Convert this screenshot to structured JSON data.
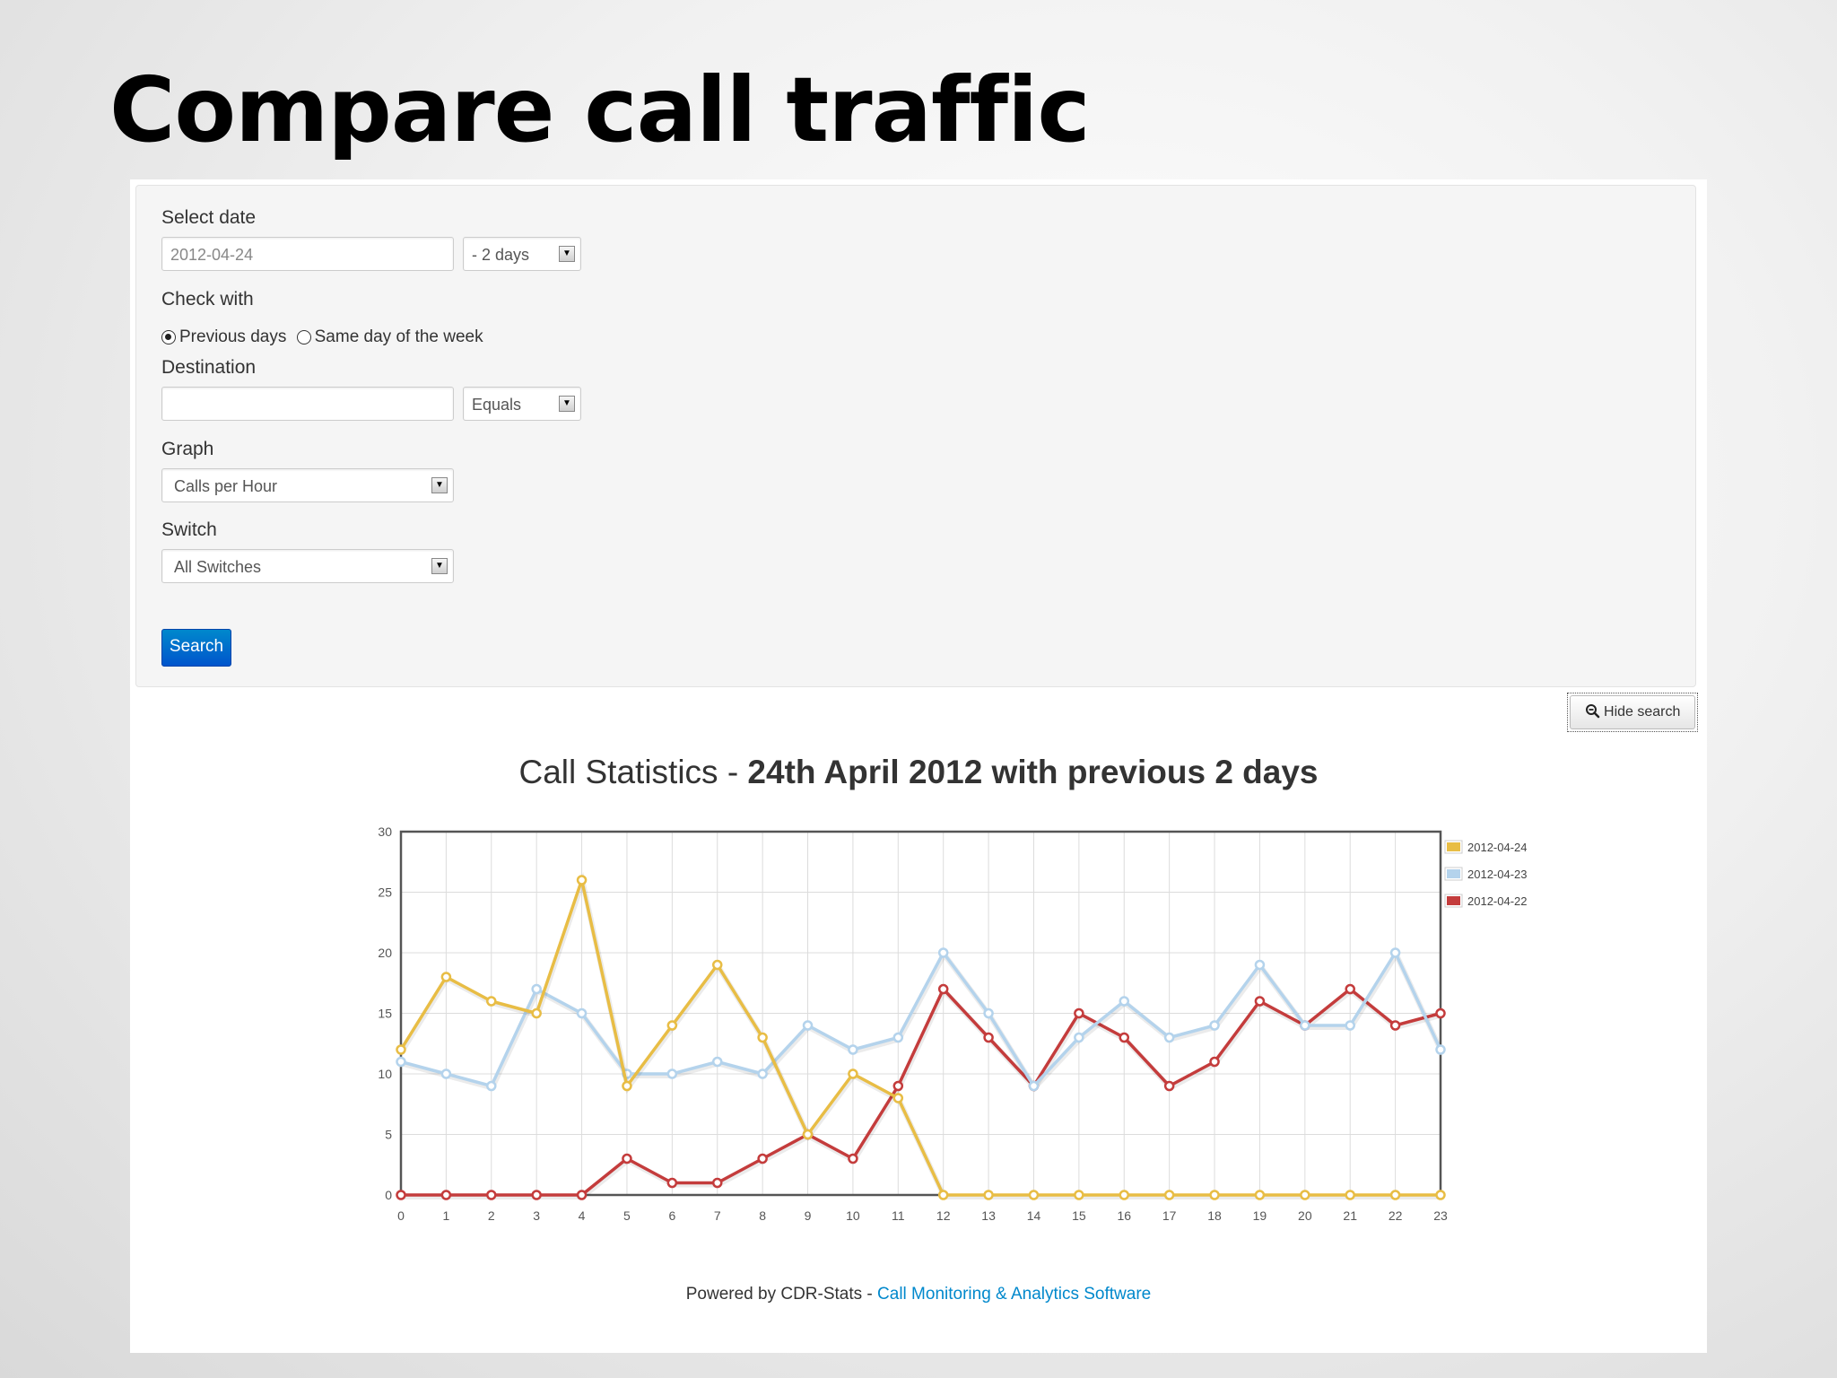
{
  "slide": {
    "title": "Compare call traffic"
  },
  "form": {
    "select_date_label": "Select date",
    "date_value": "2012-04-24",
    "days_option": "- 2 days",
    "check_with_label": "Check with",
    "radio_previous_days": "Previous days",
    "radio_same_day": "Same day of the week",
    "selected_check": "previous_days",
    "destination_label": "Destination",
    "destination_value": "",
    "destination_match": "Equals",
    "graph_label": "Graph",
    "graph_value": "Calls per Hour",
    "switch_label": "Switch",
    "switch_value": "All Switches",
    "search_button": "Search"
  },
  "hide_search_button": "Hide search",
  "chart_title": {
    "prefix": "Call Statistics - ",
    "bold": "24th April 2012 with previous 2 days"
  },
  "footer": {
    "text": "Powered by CDR-Stats - ",
    "link": "Call Monitoring & Analytics Software"
  },
  "icons": {
    "hide_search": "zoom-out-icon",
    "select_arrow": "chevron-down-icon"
  },
  "chart_data": {
    "type": "line",
    "title": "Call Statistics - 24th April 2012 with previous 2 days",
    "xlabel": "",
    "ylabel": "",
    "x": [
      0,
      1,
      2,
      3,
      4,
      5,
      6,
      7,
      8,
      9,
      10,
      11,
      12,
      13,
      14,
      15,
      16,
      17,
      18,
      19,
      20,
      21,
      22,
      23
    ],
    "ylim": [
      0,
      30
    ],
    "yticks": [
      0,
      5,
      10,
      15,
      20,
      25,
      30
    ],
    "grid": true,
    "legend_position": "right",
    "series": [
      {
        "name": "2012-04-24",
        "color": "#e8bd45",
        "values": [
          12,
          18,
          16,
          15,
          26,
          9,
          14,
          19,
          13,
          5,
          10,
          8,
          0,
          0,
          0,
          0,
          0,
          0,
          0,
          0,
          0,
          0,
          0,
          0
        ]
      },
      {
        "name": "2012-04-23",
        "color": "#b4d3ec",
        "values": [
          11,
          10,
          9,
          17,
          15,
          10,
          10,
          11,
          10,
          14,
          12,
          13,
          20,
          15,
          9,
          13,
          16,
          13,
          14,
          19,
          14,
          14,
          20,
          12
        ]
      },
      {
        "name": "2012-04-22",
        "color": "#c43c3c",
        "values": [
          0,
          0,
          0,
          0,
          0,
          3,
          1,
          1,
          3,
          5,
          3,
          9,
          17,
          13,
          9,
          15,
          13,
          9,
          11,
          16,
          14,
          17,
          14,
          15
        ]
      }
    ]
  }
}
